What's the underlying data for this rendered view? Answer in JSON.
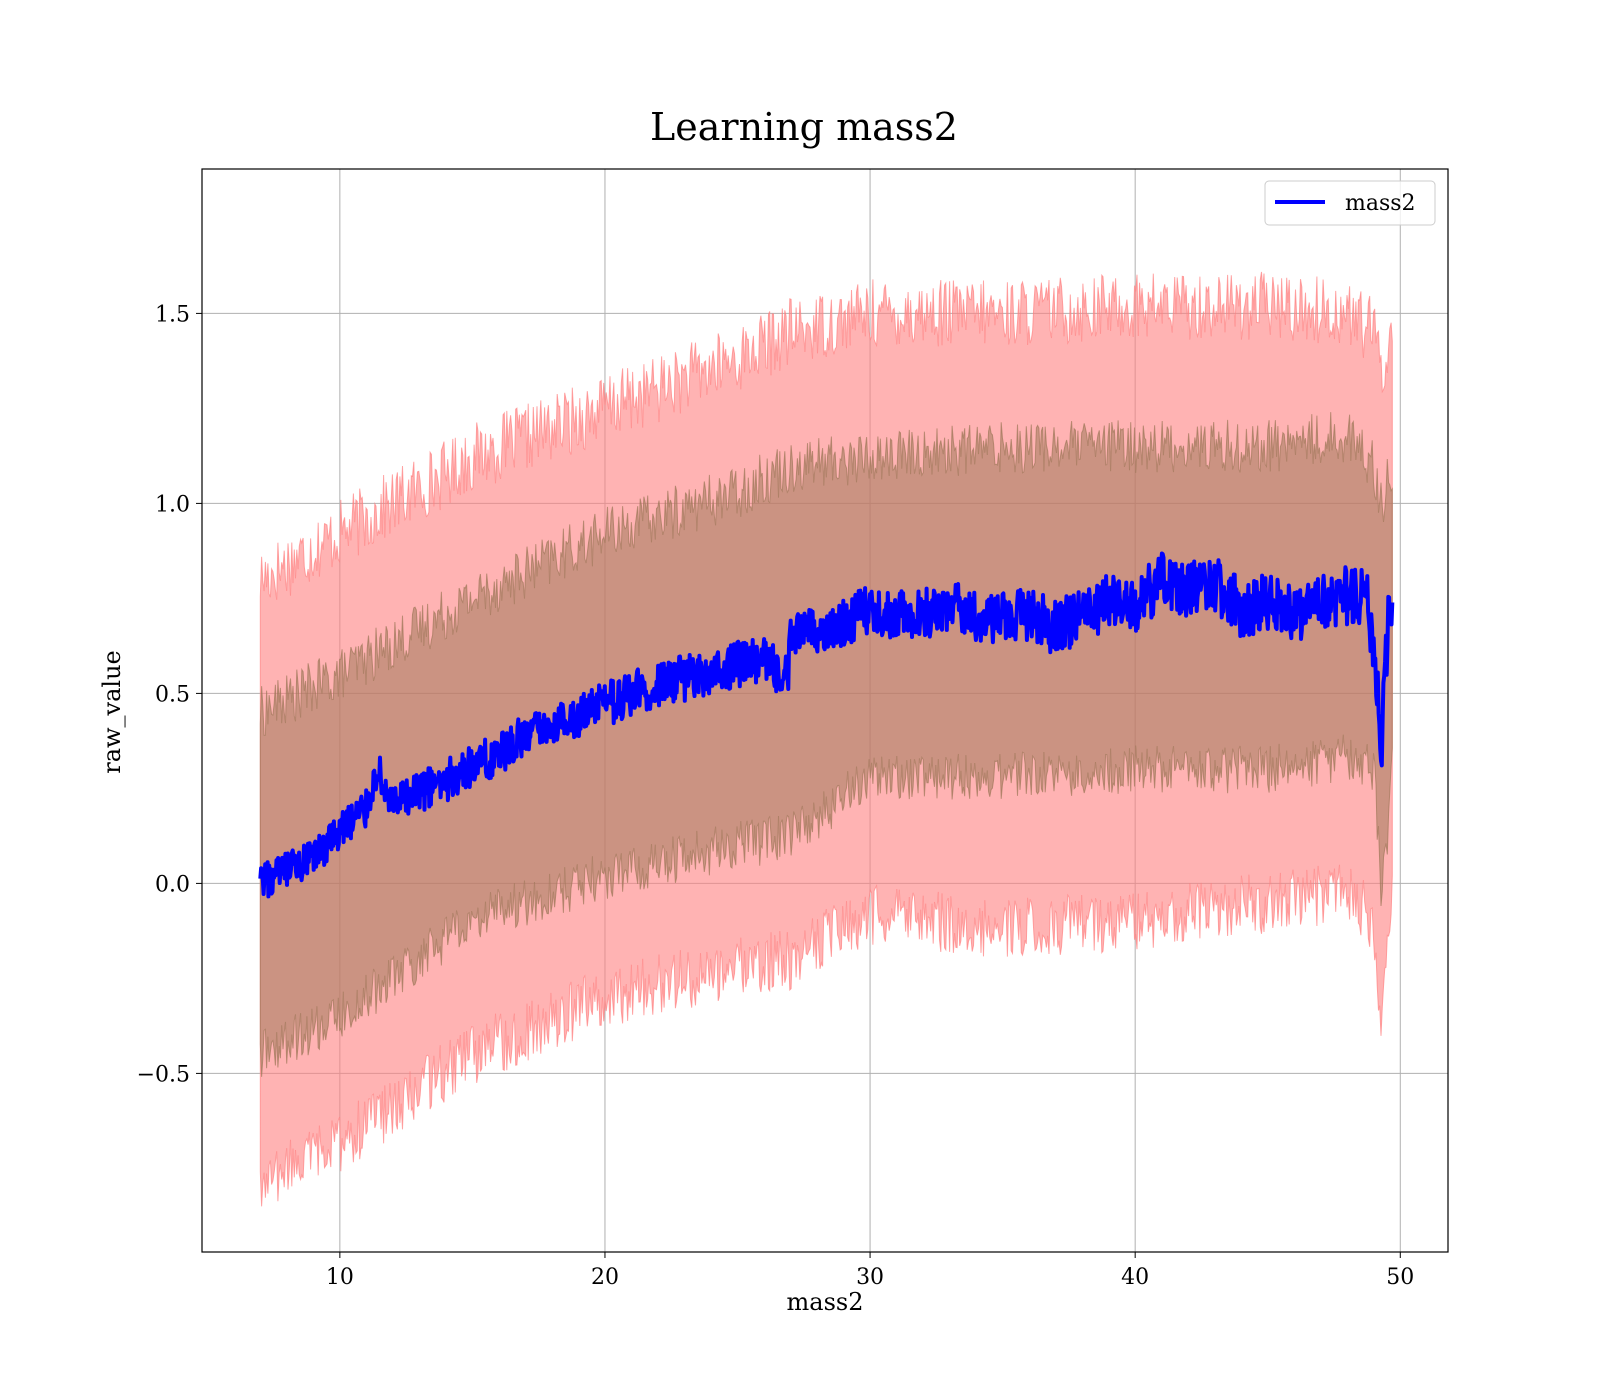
{
  "chart_data": {
    "type": "line",
    "title": "Learning mass2",
    "xlabel": "mass2",
    "ylabel": "raw_value",
    "xlim": [
      4.8,
      51.8
    ],
    "ylim": [
      -0.97,
      1.88
    ],
    "x_ticks": [
      10,
      20,
      30,
      40,
      50
    ],
    "x_tick_labels": [
      "10",
      "20",
      "30",
      "40",
      "50"
    ],
    "y_ticks": [
      -0.5,
      0.0,
      0.5,
      1.0,
      1.5
    ],
    "y_tick_labels": [
      "−0.5",
      "0.0",
      "0.5",
      "1.0",
      "1.5"
    ],
    "grid": true,
    "legend": {
      "position": "top-right",
      "entries": [
        "mass2"
      ]
    },
    "colors": {
      "line": "#0000ff",
      "outer_band": "#ff8080",
      "inner_band": "#a0785a",
      "grid": "#b0b0b0"
    },
    "series": [
      {
        "name": "mass2",
        "x": [
          7.0,
          8.0,
          9.0,
          10.0,
          11.0,
          11.4,
          12.0,
          13.0,
          14.0,
          15.0,
          16.0,
          17.0,
          18.0,
          19.0,
          20.0,
          21.0,
          22.0,
          23.0,
          24.0,
          25.0,
          26.0,
          26.9,
          27.0,
          28.0,
          29.0,
          30.0,
          31.0,
          32.0,
          33.0,
          34.0,
          35.0,
          36.0,
          37.0,
          38.0,
          39.0,
          40.0,
          41.0,
          42.0,
          43.0,
          44.0,
          45.0,
          46.0,
          47.0,
          48.0,
          48.8,
          49.3,
          49.6,
          49.7
        ],
        "y": [
          0.0,
          0.03,
          0.06,
          0.14,
          0.2,
          0.3,
          0.2,
          0.24,
          0.27,
          0.31,
          0.34,
          0.39,
          0.42,
          0.44,
          0.47,
          0.5,
          0.52,
          0.54,
          0.56,
          0.58,
          0.58,
          0.55,
          0.64,
          0.67,
          0.69,
          0.72,
          0.71,
          0.71,
          0.73,
          0.7,
          0.7,
          0.71,
          0.67,
          0.71,
          0.74,
          0.73,
          0.8,
          0.77,
          0.79,
          0.72,
          0.74,
          0.71,
          0.74,
          0.76,
          0.74,
          0.38,
          0.75,
          0.73
        ]
      }
    ],
    "bands": [
      {
        "label": "outer",
        "x": [
          7.0,
          10.0,
          15.0,
          20.0,
          25.0,
          27.0,
          30.0,
          35.0,
          40.0,
          45.0,
          48.0,
          49.0,
          49.3,
          49.7
        ],
        "upper": [
          0.8,
          0.92,
          1.12,
          1.25,
          1.38,
          1.45,
          1.5,
          1.5,
          1.52,
          1.52,
          1.5,
          1.45,
          1.35,
          1.45
        ],
        "lower": [
          -0.8,
          -0.68,
          -0.45,
          -0.3,
          -0.22,
          -0.2,
          -0.08,
          -0.12,
          -0.1,
          -0.05,
          -0.02,
          -0.1,
          -0.4,
          0.0
        ]
      },
      {
        "label": "inner",
        "x": [
          7.0,
          10.0,
          15.0,
          20.0,
          25.0,
          27.0,
          30.0,
          35.0,
          40.0,
          45.0,
          48.0,
          49.0,
          49.3,
          49.7
        ],
        "upper": [
          0.45,
          0.55,
          0.75,
          0.92,
          1.03,
          1.1,
          1.12,
          1.15,
          1.15,
          1.15,
          1.18,
          1.1,
          1.0,
          1.1
        ],
        "lower": [
          -0.45,
          -0.35,
          -0.1,
          0.02,
          0.1,
          0.12,
          0.28,
          0.28,
          0.3,
          0.3,
          0.33,
          0.3,
          -0.05,
          0.3
        ]
      }
    ]
  }
}
